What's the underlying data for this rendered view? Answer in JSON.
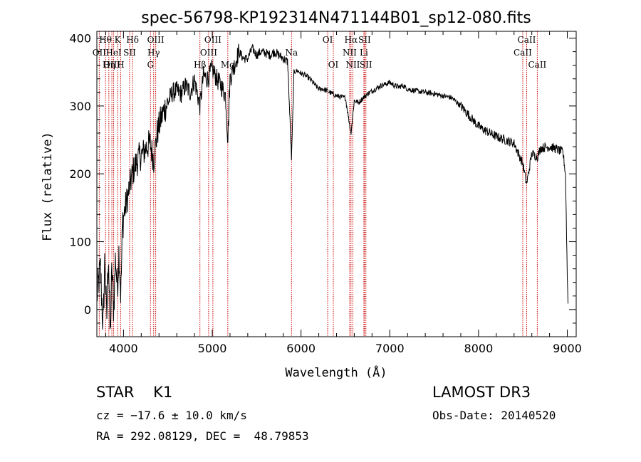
{
  "chart_data": {
    "type": "line",
    "title": "spec-56798-KP192314N471144B01_sp12-080.fits",
    "xlabel": "Wavelength (Å)",
    "ylabel": "Flux (relative)",
    "xlim": [
      3700,
      9100
    ],
    "ylim": [
      -40,
      410
    ],
    "xticks": [
      4000,
      5000,
      6000,
      7000,
      8000,
      9000
    ],
    "yticks": [
      0,
      100,
      200,
      300,
      400
    ],
    "spectrum_anchors": [
      [
        3700,
        20
      ],
      [
        3740,
        60
      ],
      [
        3770,
        -30
      ],
      [
        3790,
        80
      ],
      [
        3810,
        -20
      ],
      [
        3830,
        90
      ],
      [
        3850,
        -40
      ],
      [
        3870,
        60
      ],
      [
        3890,
        0
      ],
      [
        3910,
        80
      ],
      [
        3930,
        30
      ],
      [
        3950,
        90
      ],
      [
        3970,
        20
      ],
      [
        3990,
        130
      ],
      [
        4020,
        150
      ],
      [
        4060,
        175
      ],
      [
        4100,
        200
      ],
      [
        4140,
        215
      ],
      [
        4180,
        225
      ],
      [
        4220,
        230
      ],
      [
        4260,
        240
      ],
      [
        4300,
        245
      ],
      [
        4340,
        220
      ],
      [
        4380,
        260
      ],
      [
        4420,
        280
      ],
      [
        4460,
        295
      ],
      [
        4500,
        305
      ],
      [
        4550,
        320
      ],
      [
        4600,
        322
      ],
      [
        4650,
        318
      ],
      [
        4700,
        330
      ],
      [
        4750,
        320
      ],
      [
        4800,
        338
      ],
      [
        4861,
        300
      ],
      [
        4900,
        345
      ],
      [
        4950,
        340
      ],
      [
        5000,
        355
      ],
      [
        5050,
        340
      ],
      [
        5100,
        330
      ],
      [
        5150,
        315
      ],
      [
        5175,
        250
      ],
      [
        5200,
        340
      ],
      [
        5250,
        360
      ],
      [
        5300,
        380
      ],
      [
        5350,
        370
      ],
      [
        5400,
        370
      ],
      [
        5450,
        385
      ],
      [
        5500,
        375
      ],
      [
        5550,
        380
      ],
      [
        5600,
        378
      ],
      [
        5650,
        375
      ],
      [
        5700,
        380
      ],
      [
        5750,
        375
      ],
      [
        5800,
        370
      ],
      [
        5850,
        365
      ],
      [
        5893,
        220
      ],
      [
        5920,
        350
      ],
      [
        5960,
        352
      ],
      [
        6000,
        348
      ],
      [
        6050,
        345
      ],
      [
        6100,
        340
      ],
      [
        6150,
        332
      ],
      [
        6200,
        325
      ],
      [
        6250,
        325
      ],
      [
        6300,
        322
      ],
      [
        6350,
        318
      ],
      [
        6400,
        315
      ],
      [
        6450,
        313
      ],
      [
        6500,
        312
      ],
      [
        6563,
        260
      ],
      [
        6600,
        308
      ],
      [
        6650,
        305
      ],
      [
        6700,
        312
      ],
      [
        6750,
        318
      ],
      [
        6800,
        322
      ],
      [
        6850,
        326
      ],
      [
        6900,
        330
      ],
      [
        6950,
        332
      ],
      [
        7000,
        335
      ],
      [
        7050,
        330
      ],
      [
        7100,
        328
      ],
      [
        7150,
        330
      ],
      [
        7200,
        325
      ],
      [
        7300,
        322
      ],
      [
        7400,
        320
      ],
      [
        7500,
        318
      ],
      [
        7600,
        315
      ],
      [
        7700,
        312
      ],
      [
        7800,
        300
      ],
      [
        7900,
        285
      ],
      [
        8000,
        270
      ],
      [
        8100,
        262
      ],
      [
        8200,
        255
      ],
      [
        8300,
        250
      ],
      [
        8400,
        245
      ],
      [
        8498,
        215
      ],
      [
        8542,
        185
      ],
      [
        8600,
        230
      ],
      [
        8662,
        225
      ],
      [
        8700,
        238
      ],
      [
        8800,
        240
      ],
      [
        8850,
        238
      ],
      [
        8900,
        235
      ],
      [
        8950,
        232
      ],
      [
        8980,
        200
      ],
      [
        9000,
        50
      ],
      [
        9010,
        0
      ]
    ],
    "lines": [
      {
        "label": "Hθ",
        "wavelength": 3797,
        "row": 0
      },
      {
        "label": "OII",
        "wavelength": 3727,
        "row": 1
      },
      {
        "label": "OIII",
        "wavelength": 3869,
        "row": 2
      },
      {
        "label": "K",
        "wavelength": 3934,
        "row": 0
      },
      {
        "label": "HeI",
        "wavelength": 3889,
        "row": 1
      },
      {
        "label": "Hη",
        "wavelength": 3835,
        "row": 2
      },
      {
        "label": "SII",
        "wavelength": 4069,
        "row": 1
      },
      {
        "label": "H",
        "wavelength": 3968,
        "row": 2
      },
      {
        "label": "Hδ",
        "wavelength": 4102,
        "row": 0
      },
      {
        "label": "OIII",
        "wavelength": 4363,
        "row": 0
      },
      {
        "label": "Hγ",
        "wavelength": 4340,
        "row": 1
      },
      {
        "label": "G",
        "wavelength": 4304,
        "row": 2
      },
      {
        "label": "Hβ",
        "wavelength": 4861,
        "row": 2
      },
      {
        "label": "OIII",
        "wavelength": 5007,
        "row": 0
      },
      {
        "label": "OIII",
        "wavelength": 4959,
        "row": 1
      },
      {
        "label": "Mg",
        "wavelength": 5175,
        "row": 2
      },
      {
        "label": "Na",
        "wavelength": 5893,
        "row": 1
      },
      {
        "label": "OI",
        "wavelength": 6300,
        "row": 0
      },
      {
        "label": "OI",
        "wavelength": 6364,
        "row": 2
      },
      {
        "label": "Hα",
        "wavelength": 6563,
        "row": 0
      },
      {
        "label": "SII",
        "wavelength": 6716,
        "row": 0
      },
      {
        "label": "NII",
        "wavelength": 6548,
        "row": 1
      },
      {
        "label": "Li",
        "wavelength": 6708,
        "row": 1
      },
      {
        "label": "NII",
        "wavelength": 6584,
        "row": 2
      },
      {
        "label": "SII",
        "wavelength": 6731,
        "row": 2
      },
      {
        "label": "CaII",
        "wavelength": 8542,
        "row": 0
      },
      {
        "label": "CaII",
        "wavelength": 8498,
        "row": 1
      },
      {
        "label": "CaII",
        "wavelength": 8662,
        "row": 2
      }
    ]
  },
  "info": {
    "class_line": "STAR    K1",
    "cz_line": "cz = −17.6 ± 10.0 km/s",
    "radec_line": "RA = 292.08129, DEC =  48.79853",
    "survey": "LAMOST DR3",
    "obs_date": "Obs-Date: 20140520"
  },
  "colors": {
    "line_marker": "#cc0000",
    "spectrum": "#000000",
    "axis": "#000000"
  }
}
